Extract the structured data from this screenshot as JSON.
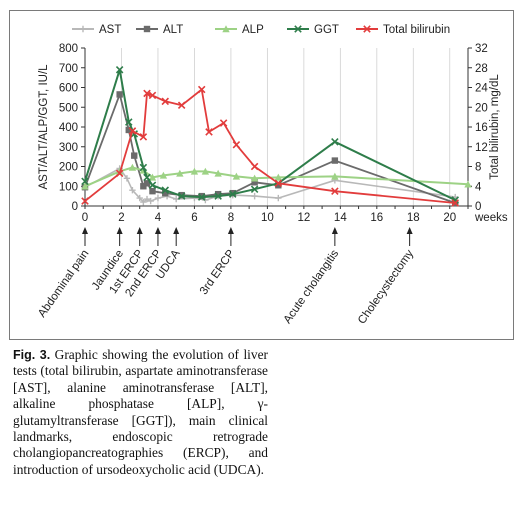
{
  "chart_data": {
    "type": "line",
    "xlabel": "weeks",
    "ylabel_left": "AST/ALT/ALP/GGT, IU/L",
    "ylabel_right": "Total bilirubin, mg/dL",
    "xlim": [
      0,
      21
    ],
    "ylim_left": [
      0,
      800
    ],
    "ylim_right": [
      0,
      32
    ],
    "xticks": [
      "0",
      "2",
      "4",
      "6",
      "8",
      "10",
      "12",
      "14",
      "16",
      "18",
      "20"
    ],
    "yticks_left": [
      "0",
      "100",
      "200",
      "300",
      "400",
      "500",
      "600",
      "700",
      "800"
    ],
    "yticks_right": [
      "0",
      "4",
      "8",
      "12",
      "16",
      "20",
      "24",
      "28",
      "32"
    ],
    "grid": "vertical",
    "legend_position": "top",
    "series": [
      {
        "name": "AST",
        "axis": "left",
        "color": "#b8b8b8",
        "marker": "plus",
        "x": [
          0,
          1.9,
          2.3,
          2.6,
          3.0,
          3.2,
          3.4,
          3.6,
          4.0,
          4.5,
          5.0,
          6.0,
          6.6,
          7.3,
          8.1,
          9.3,
          10.6,
          13.7,
          20.3
        ],
        "y": [
          95,
          190,
          140,
          80,
          40,
          20,
          35,
          25,
          40,
          50,
          35,
          40,
          30,
          50,
          55,
          50,
          40,
          130,
          45
        ]
      },
      {
        "name": "ALT",
        "axis": "left",
        "color": "#6b6b6b",
        "marker": "square",
        "x": [
          0,
          1.9,
          2.4,
          2.7,
          3.2,
          3.4,
          3.7,
          4.4,
          5.3,
          6.4,
          7.3,
          8.1,
          9.3,
          10.6,
          13.7,
          20.3
        ],
        "y": [
          95,
          565,
          385,
          255,
          100,
          115,
          75,
          65,
          55,
          50,
          60,
          65,
          120,
          105,
          230,
          15
        ]
      },
      {
        "name": "ALP",
        "axis": "left",
        "color": "#9dd285",
        "marker": "triangle",
        "x": [
          0,
          1.9,
          2.6,
          3.2,
          3.7,
          4.3,
          5.2,
          6.0,
          6.6,
          7.3,
          8.3,
          9.3,
          10.6,
          13.7,
          21.0
        ],
        "y": [
          100,
          175,
          195,
          180,
          145,
          155,
          165,
          175,
          175,
          165,
          150,
          140,
          145,
          150,
          110
        ]
      },
      {
        "name": "GGT",
        "axis": "left",
        "color": "#2e7d4a",
        "marker": "x",
        "x": [
          0,
          1.9,
          2.4,
          2.7,
          3.2,
          3.4,
          3.7,
          4.4,
          5.3,
          6.4,
          7.3,
          8.1,
          9.3,
          10.6,
          13.7,
          20.3
        ],
        "y": [
          125,
          690,
          425,
          365,
          195,
          145,
          105,
          80,
          50,
          45,
          50,
          60,
          85,
          115,
          325,
          30
        ]
      },
      {
        "name": "Total bilirubin",
        "axis": "right",
        "color": "#e23c3c",
        "marker": "x",
        "x": [
          0,
          1.9,
          2.6,
          3.2,
          3.4,
          3.7,
          4.4,
          5.3,
          6.4,
          6.8,
          7.6,
          8.3,
          9.3,
          10.6,
          13.7,
          20.3
        ],
        "y": [
          1.0,
          6.6,
          15.2,
          14.0,
          22.8,
          22.4,
          21.2,
          20.4,
          23.6,
          15.0,
          16.8,
          12.4,
          8.0,
          4.6,
          3.0,
          0.6
        ]
      }
    ],
    "annotations": [
      {
        "label": "Abdominal pain",
        "x": 0
      },
      {
        "label": "Jaundice",
        "x": 1.9
      },
      {
        "label": "1st ERCP",
        "x": 3.0
      },
      {
        "label": "2nd ERCP",
        "x": 4.0
      },
      {
        "label": "UDCA",
        "x": 5.0
      },
      {
        "label": "3rd ERCP",
        "x": 8.0
      },
      {
        "label": "Acute cholangitis",
        "x": 13.7
      },
      {
        "label": "Cholecystectomy",
        "x": 17.8
      }
    ]
  },
  "caption": {
    "label": "Fig. 3.",
    "text": " Graphic showing the evolution of liver tests (total bilirubin, aspartate aminotransferase [AST], alanine aminotransferase [ALT], alkaline phosphatase [ALP], γ-glutamyltransferase [GGT]), main clinical landmarks, endoscopic retrograde cholangiopancreatographies (ERCP), and introduction of ursodeoxycholic acid (UDCA)."
  }
}
